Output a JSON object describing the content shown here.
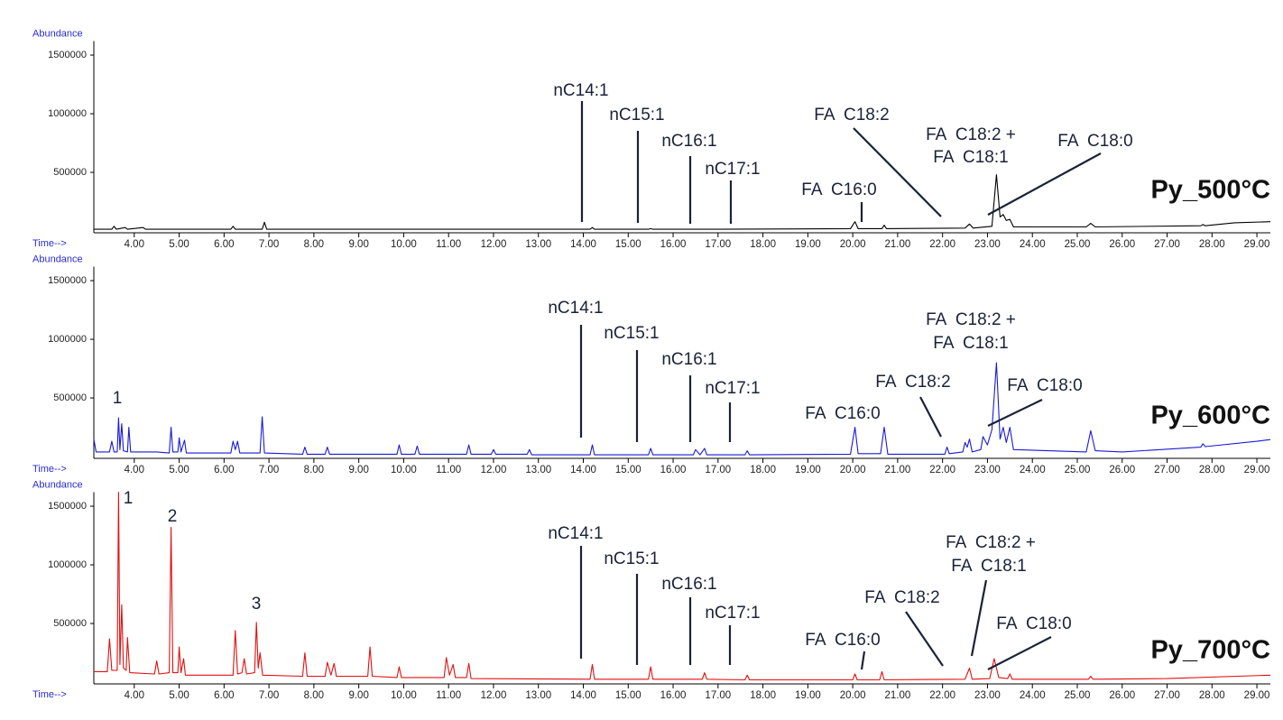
{
  "chart_data": [
    {
      "type": "line",
      "color": "#000000",
      "label": "Py_500°C",
      "y_label": "Abundance",
      "x_label": "Time-->",
      "xlim": [
        3.1,
        29.3
      ],
      "ylim": [
        -15000,
        1620000
      ],
      "yticks": [
        500000,
        1000000,
        1500000
      ],
      "xticks": [
        {
          "value": 4,
          "label": "4.00"
        },
        {
          "value": 5,
          "label": "5.00"
        },
        {
          "value": 6,
          "label": "6.00"
        },
        {
          "value": 7,
          "label": "7.00"
        },
        {
          "value": 8,
          "label": "8.00"
        },
        {
          "value": 9,
          "label": "9.00"
        },
        {
          "value": 10,
          "label": "10.00"
        },
        {
          "value": 11,
          "label": "11.00"
        },
        {
          "value": 12,
          "label": "12.00"
        },
        {
          "value": 13,
          "label": "13.00"
        },
        {
          "value": 14,
          "label": "14.00"
        },
        {
          "value": 15,
          "label": "15.00"
        },
        {
          "value": 16,
          "label": "16.00"
        },
        {
          "value": 17,
          "label": "17.00"
        },
        {
          "value": 18,
          "label": "18.00"
        },
        {
          "value": 19,
          "label": "19.00"
        },
        {
          "value": 20,
          "label": "20.00"
        },
        {
          "value": 21,
          "label": "21.00"
        },
        {
          "value": 22,
          "label": "22.00"
        },
        {
          "value": 23,
          "label": "23.00"
        },
        {
          "value": 24,
          "label": "24.00"
        },
        {
          "value": 25,
          "label": "25.00"
        },
        {
          "value": 26,
          "label": "26.00"
        },
        {
          "value": 27,
          "label": "27.00"
        },
        {
          "value": 28,
          "label": "28.00"
        },
        {
          "value": 29,
          "label": "29.00"
        }
      ],
      "x": [
        3.1,
        3.5,
        3.55,
        3.6,
        3.8,
        3.85,
        4.2,
        4.25,
        5.0,
        6.15,
        6.2,
        6.25,
        6.85,
        6.9,
        6.95,
        10,
        14.15,
        14.2,
        14.25,
        15.45,
        15.5,
        15.55,
        17,
        19.95,
        20.05,
        20.12,
        20.65,
        20.7,
        20.75,
        22.5,
        22.6,
        22.68,
        23.1,
        23.2,
        23.28,
        23.35,
        23.42,
        23.5,
        23.58,
        25.2,
        25.3,
        25.4,
        27.75,
        27.8,
        27.85,
        28.5,
        29.3
      ],
      "values": [
        15000,
        15000,
        40000,
        15000,
        30000,
        15000,
        30000,
        15000,
        15000,
        15000,
        40000,
        15000,
        15000,
        75000,
        15000,
        15000,
        15000,
        30000,
        15000,
        15000,
        20000,
        15000,
        15000,
        20000,
        80000,
        20000,
        20000,
        50000,
        20000,
        25000,
        60000,
        25000,
        40000,
        480000,
        120000,
        140000,
        90000,
        100000,
        35000,
        35000,
        65000,
        35000,
        45000,
        55000,
        45000,
        70000,
        80000
      ],
      "annotations": [
        "nC14:1",
        "nC15:1",
        "nC16:1",
        "nC17:1",
        "FA  C16:0",
        "FA  C18:2",
        "FA  C18:2 +",
        "FA  C18:1",
        "FA  C18:0"
      ]
    },
    {
      "type": "line",
      "color": "#1a1ad6",
      "label": "Py_600°C",
      "y_label": "Abundance",
      "x_label": "Time-->",
      "xlim": [
        3.1,
        29.3
      ],
      "ylim": [
        -15000,
        1620000
      ],
      "yticks": [
        500000,
        1000000,
        1500000
      ],
      "xticks": [
        {
          "value": 4,
          "label": "4.00"
        },
        {
          "value": 5,
          "label": "5.00"
        },
        {
          "value": 6,
          "label": "6.00"
        },
        {
          "value": 7,
          "label": "7.00"
        },
        {
          "value": 8,
          "label": "8.00"
        },
        {
          "value": 9,
          "label": "9.00"
        },
        {
          "value": 10,
          "label": "10.00"
        },
        {
          "value": 11,
          "label": "11.00"
        },
        {
          "value": 12,
          "label": "12.00"
        },
        {
          "value": 13,
          "label": "13.00"
        },
        {
          "value": 14,
          "label": "14.00"
        },
        {
          "value": 15,
          "label": "15.00"
        },
        {
          "value": 16,
          "label": "16.00"
        },
        {
          "value": 17,
          "label": "17.00"
        },
        {
          "value": 18,
          "label": "18.00"
        },
        {
          "value": 19,
          "label": "19.00"
        },
        {
          "value": 20,
          "label": "20.00"
        },
        {
          "value": 21,
          "label": "21.00"
        },
        {
          "value": 22,
          "label": "22.00"
        },
        {
          "value": 23,
          "label": "23.00"
        },
        {
          "value": 24,
          "label": "24.00"
        },
        {
          "value": 25,
          "label": "25.00"
        },
        {
          "value": 26,
          "label": "26.00"
        },
        {
          "value": 27,
          "label": "27.00"
        },
        {
          "value": 28,
          "label": "28.00"
        },
        {
          "value": 29,
          "label": "29.00"
        }
      ],
      "x": [
        3.1,
        3.15,
        3.45,
        3.5,
        3.55,
        3.62,
        3.65,
        3.68,
        3.72,
        3.76,
        3.85,
        3.88,
        3.92,
        4.5,
        4.78,
        4.82,
        4.86,
        4.97,
        5.0,
        5.04,
        5.12,
        5.16,
        6.15,
        6.2,
        6.25,
        6.3,
        6.35,
        6.8,
        6.85,
        6.9,
        7.75,
        7.8,
        7.85,
        8.25,
        8.3,
        8.35,
        9.85,
        9.9,
        9.95,
        10.25,
        10.3,
        10.35,
        11.4,
        11.45,
        11.5,
        11.95,
        12.0,
        12.05,
        12.75,
        12.8,
        12.85,
        14.15,
        14.2,
        14.25,
        15.45,
        15.5,
        15.55,
        16.45,
        16.5,
        16.6,
        16.7,
        16.75,
        17.6,
        17.65,
        17.7,
        19.95,
        20.05,
        20.12,
        20.62,
        20.7,
        20.78,
        22.05,
        22.1,
        22.15,
        22.45,
        22.5,
        22.55,
        22.6,
        22.66,
        22.85,
        22.9,
        23.0,
        23.1,
        23.2,
        23.28,
        23.35,
        23.42,
        23.5,
        23.58,
        25.2,
        25.3,
        25.4,
        26.0,
        27.75,
        27.8,
        27.85,
        29.0,
        29.3
      ],
      "values": [
        150000,
        40000,
        40000,
        130000,
        40000,
        40000,
        330000,
        60000,
        280000,
        50000,
        40000,
        250000,
        40000,
        40000,
        30000,
        250000,
        40000,
        40000,
        160000,
        40000,
        140000,
        30000,
        30000,
        130000,
        60000,
        130000,
        30000,
        30000,
        340000,
        30000,
        20000,
        80000,
        20000,
        20000,
        80000,
        20000,
        20000,
        100000,
        20000,
        20000,
        90000,
        20000,
        20000,
        100000,
        20000,
        20000,
        60000,
        20000,
        20000,
        60000,
        15000,
        15000,
        100000,
        15000,
        15000,
        70000,
        15000,
        15000,
        60000,
        15000,
        70000,
        15000,
        15000,
        50000,
        15000,
        20000,
        250000,
        25000,
        25000,
        250000,
        20000,
        20000,
        80000,
        25000,
        40000,
        120000,
        80000,
        150000,
        40000,
        60000,
        170000,
        100000,
        230000,
        800000,
        150000,
        250000,
        120000,
        250000,
        60000,
        40000,
        220000,
        50000,
        40000,
        80000,
        110000,
        85000,
        130000,
        145000
      ],
      "annotations": [
        "1",
        "nC14:1",
        "nC15:1",
        "nC16:1",
        "nC17:1",
        "FA  C16:0",
        "FA  C18:2",
        "FA  C18:2 +",
        "FA  C18:1",
        "FA  C18:0"
      ]
    },
    {
      "type": "line",
      "color": "#e01010",
      "label": "Py_700°C",
      "y_label": "Abundance",
      "x_label": "Time-->",
      "xlim": [
        3.1,
        29.3
      ],
      "ylim": [
        -15000,
        1620000
      ],
      "yticks": [
        500000,
        1000000,
        1500000
      ],
      "xticks": [
        {
          "value": 4,
          "label": "4.00"
        },
        {
          "value": 5,
          "label": "5.00"
        },
        {
          "value": 6,
          "label": "6.00"
        },
        {
          "value": 7,
          "label": "7.00"
        },
        {
          "value": 8,
          "label": "8.00"
        },
        {
          "value": 9,
          "label": "9.00"
        },
        {
          "value": 10,
          "label": "10.00"
        },
        {
          "value": 11,
          "label": "11.00"
        },
        {
          "value": 12,
          "label": "12.00"
        },
        {
          "value": 13,
          "label": "13.00"
        },
        {
          "value": 14,
          "label": "14.00"
        },
        {
          "value": 15,
          "label": "15.00"
        },
        {
          "value": 16,
          "label": "16.00"
        },
        {
          "value": 17,
          "label": "17.00"
        },
        {
          "value": 18,
          "label": "18.00"
        },
        {
          "value": 19,
          "label": "19.00"
        },
        {
          "value": 20,
          "label": "20.00"
        },
        {
          "value": 21,
          "label": "21.00"
        },
        {
          "value": 22,
          "label": "22.00"
        },
        {
          "value": 23,
          "label": "23.00"
        },
        {
          "value": 24,
          "label": "24.00"
        },
        {
          "value": 25,
          "label": "25.00"
        },
        {
          "value": 26,
          "label": "26.00"
        },
        {
          "value": 27,
          "label": "27.00"
        },
        {
          "value": 28,
          "label": "28.00"
        },
        {
          "value": 29,
          "label": "29.00"
        }
      ],
      "x": [
        3.1,
        3.4,
        3.45,
        3.5,
        3.62,
        3.65,
        3.68,
        3.72,
        3.76,
        3.82,
        3.85,
        3.9,
        4.45,
        4.5,
        4.55,
        4.78,
        4.82,
        4.86,
        4.97,
        5.0,
        5.04,
        5.1,
        5.14,
        6.2,
        6.25,
        6.3,
        6.4,
        6.45,
        6.5,
        6.68,
        6.72,
        6.76,
        6.8,
        6.86,
        7.75,
        7.8,
        7.85,
        8.25,
        8.3,
        8.38,
        8.45,
        8.5,
        9.2,
        9.25,
        9.3,
        9.85,
        9.9,
        9.95,
        10.9,
        10.95,
        11.02,
        11.1,
        11.15,
        11.4,
        11.45,
        11.5,
        14.15,
        14.2,
        14.25,
        15.45,
        15.5,
        15.55,
        16.65,
        16.7,
        16.75,
        17.6,
        17.65,
        17.7,
        20.0,
        20.05,
        20.1,
        20.6,
        20.65,
        20.7,
        22.5,
        22.6,
        22.66,
        23.05,
        23.15,
        23.25,
        23.45,
        23.5,
        23.55,
        25.25,
        25.3,
        25.35,
        27.0,
        29.3
      ],
      "values": [
        90000,
        90000,
        370000,
        100000,
        100000,
        1620000,
        150000,
        660000,
        120000,
        100000,
        380000,
        80000,
        70000,
        180000,
        70000,
        80000,
        1320000,
        80000,
        80000,
        300000,
        80000,
        200000,
        60000,
        60000,
        440000,
        70000,
        80000,
        200000,
        70000,
        80000,
        510000,
        120000,
        250000,
        60000,
        50000,
        250000,
        50000,
        50000,
        170000,
        60000,
        160000,
        50000,
        50000,
        300000,
        50000,
        40000,
        130000,
        40000,
        40000,
        210000,
        60000,
        150000,
        40000,
        40000,
        160000,
        30000,
        25000,
        150000,
        25000,
        25000,
        130000,
        25000,
        25000,
        80000,
        25000,
        20000,
        60000,
        20000,
        20000,
        70000,
        20000,
        20000,
        90000,
        20000,
        25000,
        120000,
        25000,
        30000,
        200000,
        40000,
        30000,
        70000,
        25000,
        25000,
        50000,
        25000,
        30000,
        60000
      ],
      "annotations": [
        "1",
        "2",
        "3",
        "nC14:1",
        "nC15:1",
        "nC16:1",
        "nC17:1",
        "FA  C16:0",
        "FA  C18:2",
        "FA  C18:2 +",
        "FA  C18:1",
        "FA  C18:0"
      ]
    }
  ]
}
